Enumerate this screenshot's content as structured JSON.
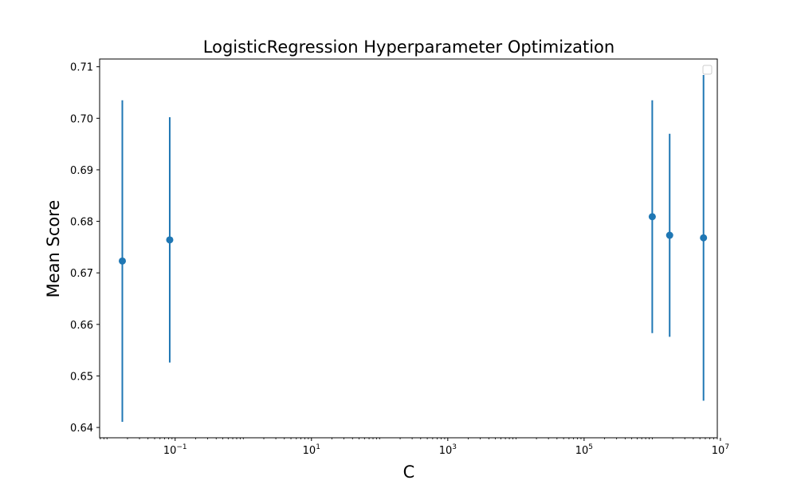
{
  "chart_data": {
    "type": "scatter",
    "title": "LogisticRegression Hyperparameter Optimization",
    "xlabel": "C",
    "ylabel": "Mean Score",
    "xscale": "log",
    "xlim": [
      0.0078,
      9000000
    ],
    "ylim": [
      0.638,
      0.7115
    ],
    "xticks": [
      {
        "base": "10",
        "exp": "−1",
        "value": 0.1
      },
      {
        "base": "10",
        "exp": "1",
        "value": 10
      },
      {
        "base": "10",
        "exp": "3",
        "value": 1000
      },
      {
        "base": "10",
        "exp": "5",
        "value": 100000
      },
      {
        "base": "10",
        "exp": "7",
        "value": 10000000
      }
    ],
    "yticks": [
      {
        "label": "0.64",
        "value": 0.64
      },
      {
        "label": "0.65",
        "value": 0.65
      },
      {
        "label": "0.66",
        "value": 0.66
      },
      {
        "label": "0.67",
        "value": 0.67
      },
      {
        "label": "0.68",
        "value": 0.68
      },
      {
        "label": "0.69",
        "value": 0.69
      },
      {
        "label": "0.70",
        "value": 0.7
      },
      {
        "label": "0.71",
        "value": 0.71
      }
    ],
    "points": [
      {
        "x": 0.0168,
        "y": 0.6723,
        "err": 0.0312
      },
      {
        "x": 0.0833,
        "y": 0.6764,
        "err": 0.0238
      },
      {
        "x": 1000000,
        "y": 0.6809,
        "err": 0.0226
      },
      {
        "x": 1800000,
        "y": 0.6773,
        "err": 0.0197
      },
      {
        "x": 5650000,
        "y": 0.6768,
        "err": 0.0316
      }
    ],
    "color": "#1f77b4",
    "legend": {
      "location": "upper right",
      "entries": []
    },
    "grid": false
  }
}
